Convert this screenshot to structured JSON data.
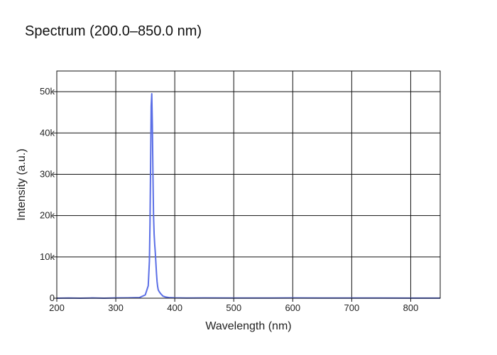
{
  "chart_data": {
    "type": "line",
    "title": "Spectrum (200.0–850.0 nm)",
    "xlabel": "Wavelength (nm)",
    "ylabel": "Intensity (a.u.)",
    "xlim": [
      200,
      850
    ],
    "ylim": [
      0,
      55000
    ],
    "xticks": [
      200,
      300,
      400,
      500,
      600,
      700,
      800
    ],
    "yticks": [
      0,
      10000,
      20000,
      30000,
      40000,
      50000
    ],
    "xtick_labels": [
      "200",
      "300",
      "400",
      "500",
      "600",
      "700",
      "800"
    ],
    "ytick_labels": [
      "0",
      "10k",
      "20k",
      "30k",
      "40k",
      "50k"
    ],
    "grid": true,
    "legend": "none",
    "colors": {
      "line": "#5b6fe6",
      "grid": "#111111",
      "frame": "#111111"
    },
    "series": [
      {
        "x": [
          200,
          220,
          240,
          260,
          280,
          300,
          320,
          340,
          350,
          355,
          357,
          358,
          359,
          360,
          361,
          362,
          363,
          364,
          365,
          366,
          367,
          368,
          369,
          370,
          371,
          372,
          374,
          376,
          378,
          380,
          384,
          390,
          400,
          420,
          450,
          500,
          550,
          600,
          650,
          700,
          750,
          800,
          850
        ],
        "y": [
          0,
          50,
          0,
          60,
          0,
          70,
          80,
          150,
          800,
          3000,
          9000,
          18000,
          32000,
          46500,
          49500,
          42000,
          30000,
          20000,
          15500,
          13000,
          11000,
          8500,
          6000,
          4000,
          2800,
          2000,
          1500,
          1100,
          800,
          500,
          300,
          150,
          80,
          50,
          60,
          40,
          50,
          60,
          40,
          50,
          40,
          30,
          20
        ]
      }
    ]
  }
}
